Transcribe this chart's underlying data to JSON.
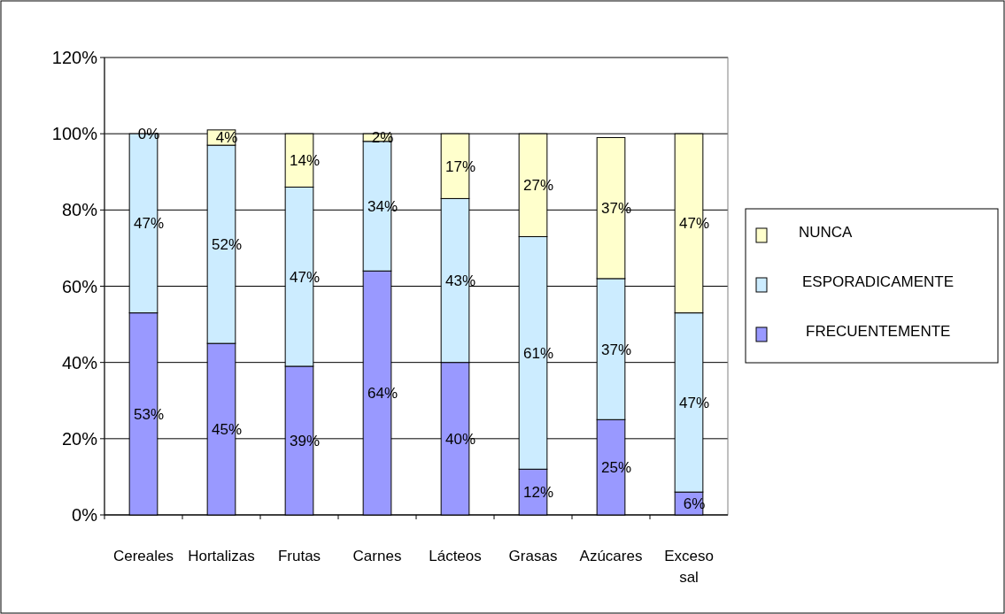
{
  "chart_data": {
    "type": "bar",
    "stacked": true,
    "categories": [
      "Cereales",
      "Hortalizas",
      "Frutas",
      "Carnes",
      "Lácteos",
      "Grasas",
      "Azúcares",
      "Exceso sal"
    ],
    "series": [
      {
        "name": "FRECUENTEMENTE",
        "color": "#9999ff",
        "values": [
          53,
          45,
          39,
          64,
          40,
          12,
          25,
          6
        ],
        "value_labels": [
          "53%",
          "45%",
          "39%",
          "64%",
          "40%",
          "12%",
          "25%",
          "6%"
        ]
      },
      {
        "name": "ESPORADICAMENTE",
        "color": "#ccecff",
        "values": [
          47,
          52,
          47,
          34,
          43,
          61,
          37,
          47
        ],
        "value_labels": [
          "47%",
          "52%",
          "47%",
          "34%",
          "43%",
          "61%",
          "37%",
          "47%"
        ]
      },
      {
        "name": "NUNCA",
        "color": "#ffffcc",
        "values": [
          0,
          4,
          14,
          2,
          17,
          27,
          37,
          47
        ],
        "value_labels": [
          "0%",
          "4%",
          "14%",
          "2%",
          "17%",
          "27%",
          "37%",
          "47%"
        ]
      }
    ],
    "ylim": [
      0,
      120
    ],
    "yticks": [
      {
        "value": 0,
        "label": "0%"
      },
      {
        "value": 20,
        "label": "20%"
      },
      {
        "value": 40,
        "label": "40%"
      },
      {
        "value": 60,
        "label": "60%"
      },
      {
        "value": 80,
        "label": "80%"
      },
      {
        "value": 100,
        "label": "100%"
      },
      {
        "value": 120,
        "label": "120%"
      }
    ],
    "grid": "y",
    "legend": "right"
  }
}
